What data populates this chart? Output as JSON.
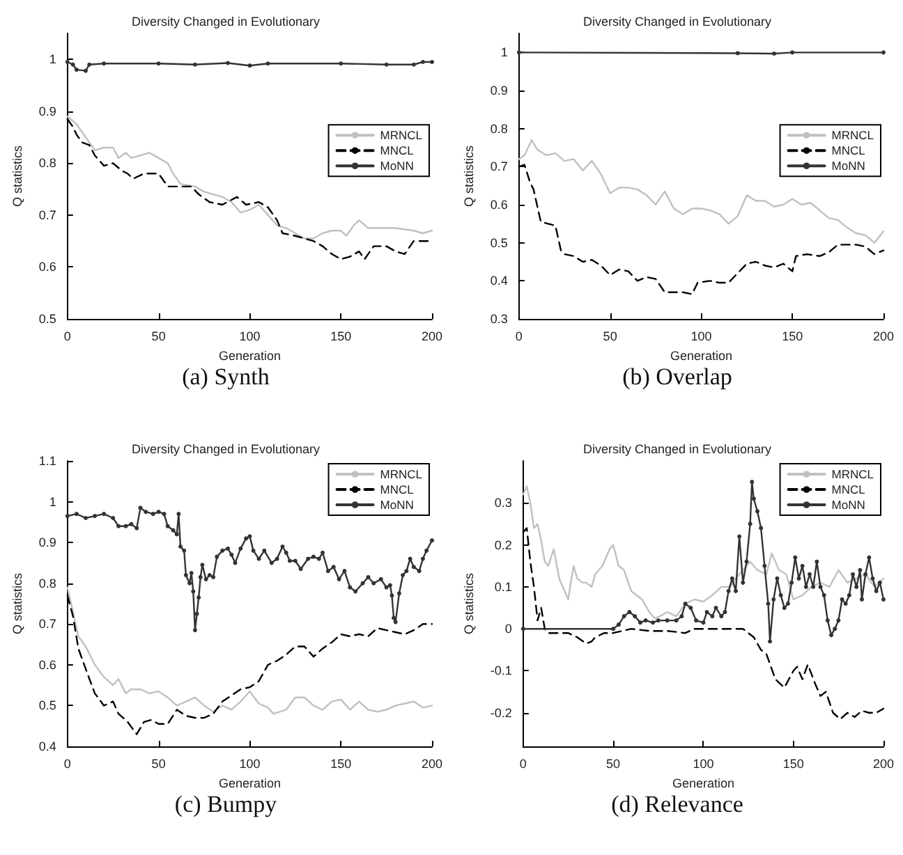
{
  "chart_data": [
    {
      "type": "line",
      "title": "Diversity Changed in Evolutionary",
      "xlabel": "Generation",
      "ylabel": "Q statistics",
      "annotations": [
        "(a) Synth"
      ],
      "xlim": [
        0,
        200
      ],
      "xticks": [
        0,
        50,
        100,
        150,
        200
      ],
      "ylim": [
        0.5,
        1.05
      ],
      "yticks": [
        0.5,
        0.6,
        0.7,
        0.8,
        0.9,
        1
      ],
      "grid": false,
      "legend": "right",
      "series": [
        {
          "name": "MRNCL",
          "color": "#c0c0c0",
          "line_style": "solid",
          "marker": "none",
          "x": [
            0,
            5,
            10,
            15,
            20,
            25,
            28,
            32,
            35,
            40,
            45,
            50,
            55,
            58,
            62,
            70,
            75,
            80,
            85,
            90,
            95,
            100,
            105,
            110,
            115,
            120,
            125,
            130,
            135,
            140,
            145,
            150,
            153,
            157,
            160,
            165,
            170,
            180,
            190,
            195,
            200
          ],
          "values": [
            0.89,
            0.875,
            0.85,
            0.825,
            0.83,
            0.83,
            0.81,
            0.82,
            0.81,
            0.815,
            0.82,
            0.81,
            0.8,
            0.78,
            0.76,
            0.755,
            0.745,
            0.74,
            0.735,
            0.725,
            0.705,
            0.71,
            0.72,
            0.7,
            0.68,
            0.675,
            0.665,
            0.655,
            0.655,
            0.665,
            0.67,
            0.67,
            0.66,
            0.68,
            0.69,
            0.675,
            0.675,
            0.675,
            0.67,
            0.665,
            0.67
          ]
        },
        {
          "name": "MNCL",
          "color": "#000000",
          "line_style": "dashed",
          "marker": "none",
          "x": [
            0,
            3,
            5,
            8,
            12,
            15,
            20,
            25,
            30,
            33,
            36,
            42,
            50,
            55,
            60,
            68,
            72,
            78,
            85,
            93,
            98,
            105,
            110,
            115,
            118,
            125,
            130,
            135,
            140,
            145,
            150,
            155,
            160,
            163,
            168,
            175,
            180,
            185,
            190,
            200
          ],
          "values": [
            0.885,
            0.87,
            0.855,
            0.84,
            0.835,
            0.815,
            0.795,
            0.8,
            0.785,
            0.78,
            0.77,
            0.78,
            0.78,
            0.755,
            0.755,
            0.755,
            0.74,
            0.725,
            0.72,
            0.735,
            0.72,
            0.725,
            0.715,
            0.69,
            0.665,
            0.66,
            0.655,
            0.65,
            0.64,
            0.625,
            0.615,
            0.62,
            0.63,
            0.615,
            0.64,
            0.64,
            0.63,
            0.625,
            0.65,
            0.65
          ]
        },
        {
          "name": "MoNN",
          "color": "#333333",
          "line_style": "solid",
          "marker": "circle",
          "x": [
            0,
            3,
            5,
            10,
            12,
            20,
            50,
            70,
            88,
            100,
            110,
            150,
            175,
            190,
            195,
            200
          ],
          "values": [
            0.995,
            0.99,
            0.98,
            0.978,
            0.99,
            0.992,
            0.992,
            0.99,
            0.993,
            0.988,
            0.992,
            0.992,
            0.99,
            0.99,
            0.995,
            0.995
          ]
        }
      ]
    },
    {
      "type": "line",
      "title": "Diversity Changed in Evolutionary",
      "xlabel": "Generation",
      "ylabel": "Q statistics",
      "annotations": [
        "(b) Overlap"
      ],
      "xlim": [
        0,
        200
      ],
      "xticks": [
        0,
        50,
        100,
        150,
        200
      ],
      "ylim": [
        0.3,
        1.05
      ],
      "yticks": [
        0.3,
        0.4,
        0.5,
        0.6,
        0.7,
        0.8,
        0.9,
        1
      ],
      "grid": false,
      "legend": "right",
      "series": [
        {
          "name": "MRNCL",
          "color": "#c0c0c0",
          "line_style": "solid",
          "marker": "none",
          "x": [
            0,
            3,
            7,
            10,
            15,
            20,
            25,
            30,
            35,
            40,
            45,
            50,
            55,
            60,
            65,
            70,
            75,
            80,
            85,
            90,
            95,
            100,
            105,
            110,
            115,
            120,
            125,
            130,
            135,
            140,
            145,
            150,
            155,
            160,
            165,
            170,
            175,
            180,
            185,
            190,
            195,
            200
          ],
          "values": [
            0.72,
            0.73,
            0.77,
            0.745,
            0.73,
            0.735,
            0.715,
            0.72,
            0.69,
            0.715,
            0.68,
            0.63,
            0.645,
            0.645,
            0.64,
            0.625,
            0.6,
            0.635,
            0.59,
            0.575,
            0.59,
            0.59,
            0.585,
            0.575,
            0.55,
            0.57,
            0.625,
            0.61,
            0.61,
            0.595,
            0.6,
            0.615,
            0.6,
            0.605,
            0.585,
            0.565,
            0.56,
            0.54,
            0.525,
            0.52,
            0.5,
            0.53
          ]
        },
        {
          "name": "MNCL",
          "color": "#000000",
          "line_style": "dashed",
          "marker": "none",
          "x": [
            0,
            3,
            6,
            8,
            12,
            16,
            20,
            23,
            25,
            30,
            35,
            40,
            45,
            50,
            55,
            60,
            65,
            70,
            75,
            80,
            85,
            90,
            95,
            98,
            105,
            110,
            115,
            120,
            125,
            130,
            135,
            140,
            145,
            150,
            152,
            158,
            165,
            170,
            175,
            180,
            185,
            190,
            195,
            200
          ],
          "values": [
            0.7,
            0.705,
            0.66,
            0.64,
            0.555,
            0.55,
            0.545,
            0.48,
            0.47,
            0.465,
            0.45,
            0.455,
            0.44,
            0.415,
            0.43,
            0.425,
            0.4,
            0.41,
            0.405,
            0.37,
            0.37,
            0.37,
            0.365,
            0.395,
            0.4,
            0.395,
            0.395,
            0.42,
            0.445,
            0.45,
            0.44,
            0.435,
            0.445,
            0.425,
            0.465,
            0.47,
            0.465,
            0.475,
            0.495,
            0.495,
            0.495,
            0.49,
            0.47,
            0.48
          ]
        },
        {
          "name": "MoNN",
          "color": "#333333",
          "line_style": "solid",
          "marker": "circle",
          "x": [
            0,
            120,
            140,
            150,
            200
          ],
          "values": [
            1.0,
            0.998,
            0.997,
            1.0,
            1.0
          ]
        }
      ]
    },
    {
      "type": "line",
      "title": "Diversity Changed in Evolutionary",
      "xlabel": "Generation",
      "ylabel": "Q statistics",
      "annotations": [
        "(c) Bumpy"
      ],
      "xlim": [
        0,
        200
      ],
      "xticks": [
        0,
        50,
        100,
        150,
        200
      ],
      "ylim": [
        0.4,
        1.1
      ],
      "yticks": [
        0.4,
        0.5,
        0.6,
        0.7,
        0.8,
        0.9,
        1,
        1.1
      ],
      "grid": false,
      "legend": "top right",
      "series": [
        {
          "name": "MRNCL",
          "color": "#c0c0c0",
          "line_style": "solid",
          "marker": "none",
          "x": [
            0,
            3,
            6,
            10,
            15,
            20,
            25,
            28,
            32,
            35,
            40,
            45,
            50,
            55,
            60,
            65,
            70,
            75,
            80,
            85,
            90,
            95,
            100,
            105,
            110,
            113,
            120,
            125,
            130,
            135,
            140,
            145,
            150,
            155,
            160,
            165,
            170,
            175,
            180,
            185,
            190,
            195,
            200
          ],
          "values": [
            0.79,
            0.73,
            0.67,
            0.645,
            0.6,
            0.57,
            0.55,
            0.565,
            0.53,
            0.54,
            0.54,
            0.53,
            0.535,
            0.52,
            0.5,
            0.51,
            0.52,
            0.5,
            0.485,
            0.5,
            0.49,
            0.51,
            0.535,
            0.505,
            0.495,
            0.48,
            0.49,
            0.52,
            0.52,
            0.5,
            0.49,
            0.51,
            0.515,
            0.49,
            0.51,
            0.49,
            0.485,
            0.49,
            0.5,
            0.505,
            0.51,
            0.495,
            0.5
          ]
        },
        {
          "name": "MNCL",
          "color": "#000000",
          "line_style": "dashed",
          "marker": "none",
          "x": [
            0,
            3,
            6,
            10,
            15,
            20,
            25,
            28,
            33,
            38,
            42,
            46,
            50,
            55,
            60,
            65,
            70,
            75,
            80,
            85,
            90,
            95,
            100,
            105,
            110,
            115,
            120,
            125,
            130,
            135,
            140,
            145,
            150,
            155,
            160,
            165,
            170,
            175,
            180,
            185,
            190,
            195,
            200
          ],
          "values": [
            0.77,
            0.72,
            0.64,
            0.59,
            0.53,
            0.5,
            0.51,
            0.48,
            0.46,
            0.43,
            0.46,
            0.465,
            0.455,
            0.455,
            0.49,
            0.475,
            0.47,
            0.47,
            0.48,
            0.51,
            0.525,
            0.54,
            0.545,
            0.56,
            0.6,
            0.61,
            0.625,
            0.645,
            0.645,
            0.62,
            0.64,
            0.655,
            0.675,
            0.67,
            0.675,
            0.67,
            0.69,
            0.685,
            0.68,
            0.675,
            0.685,
            0.7,
            0.7
          ]
        },
        {
          "name": "MoNN",
          "color": "#333333",
          "line_style": "solid",
          "marker": "circle",
          "x": [
            0,
            5,
            10,
            15,
            20,
            25,
            28,
            32,
            35,
            38,
            40,
            43,
            47,
            50,
            53,
            55,
            58,
            60,
            61,
            62,
            64,
            65,
            67,
            68,
            69,
            70,
            71,
            72,
            73,
            74,
            76,
            78,
            80,
            82,
            85,
            88,
            90,
            92,
            95,
            98,
            100,
            102,
            105,
            108,
            112,
            115,
            118,
            120,
            122,
            125,
            128,
            132,
            135,
            138,
            140,
            143,
            146,
            149,
            152,
            155,
            158,
            162,
            165,
            168,
            172,
            175,
            177,
            178,
            179,
            180,
            182,
            184,
            186,
            188,
            190,
            193,
            195,
            197,
            200
          ],
          "values": [
            0.965,
            0.97,
            0.96,
            0.965,
            0.97,
            0.96,
            0.94,
            0.94,
            0.945,
            0.935,
            0.985,
            0.975,
            0.97,
            0.975,
            0.97,
            0.94,
            0.93,
            0.92,
            0.97,
            0.89,
            0.88,
            0.82,
            0.8,
            0.825,
            0.78,
            0.685,
            0.725,
            0.765,
            0.815,
            0.845,
            0.81,
            0.82,
            0.815,
            0.865,
            0.88,
            0.885,
            0.87,
            0.85,
            0.885,
            0.91,
            0.915,
            0.88,
            0.86,
            0.88,
            0.85,
            0.86,
            0.89,
            0.875,
            0.855,
            0.855,
            0.835,
            0.86,
            0.865,
            0.86,
            0.875,
            0.83,
            0.84,
            0.81,
            0.83,
            0.79,
            0.78,
            0.8,
            0.815,
            0.8,
            0.81,
            0.79,
            0.795,
            0.77,
            0.715,
            0.705,
            0.775,
            0.82,
            0.83,
            0.86,
            0.84,
            0.83,
            0.86,
            0.88,
            0.905
          ]
        }
      ]
    },
    {
      "type": "line",
      "title": "Diversity Changed in Evolutionary",
      "xlabel": "Generation",
      "ylabel": "Q statistics",
      "annotations": [
        "(d) Relevance"
      ],
      "xlim": [
        0,
        200
      ],
      "xticks": [
        0,
        50,
        100,
        150,
        200
      ],
      "ylim": [
        -0.28,
        0.4
      ],
      "yticks": [
        -0.2,
        -0.1,
        0,
        0.1,
        0.2,
        0.3
      ],
      "grid": false,
      "legend": "top right",
      "series": [
        {
          "name": "MRNCL",
          "color": "#c0c0c0",
          "line_style": "solid",
          "marker": "none",
          "x": [
            0,
            2,
            4,
            6,
            8,
            10,
            12,
            14,
            17,
            20,
            23,
            25,
            28,
            30,
            33,
            35,
            38,
            40,
            44,
            48,
            50,
            53,
            56,
            60,
            63,
            66,
            70,
            73,
            76,
            80,
            85,
            90,
            95,
            100,
            105,
            110,
            115,
            118,
            122,
            126,
            130,
            135,
            138,
            142,
            146,
            150,
            155,
            160,
            165,
            170,
            175,
            180,
            185,
            190,
            195,
            200
          ],
          "values": [
            0.32,
            0.34,
            0.3,
            0.24,
            0.25,
            0.21,
            0.16,
            0.15,
            0.19,
            0.12,
            0.09,
            0.07,
            0.15,
            0.12,
            0.11,
            0.11,
            0.1,
            0.13,
            0.15,
            0.19,
            0.2,
            0.15,
            0.14,
            0.09,
            0.08,
            0.07,
            0.04,
            0.025,
            0.03,
            0.04,
            0.03,
            0.06,
            0.07,
            0.065,
            0.08,
            0.1,
            0.1,
            0.12,
            0.14,
            0.16,
            0.14,
            0.13,
            0.18,
            0.14,
            0.13,
            0.07,
            0.08,
            0.1,
            0.11,
            0.1,
            0.14,
            0.11,
            0.12,
            0.13,
            0.1,
            0.12
          ]
        },
        {
          "name": "MNCL",
          "color": "#000000",
          "line_style": "dashed",
          "marker": "none",
          "x": [
            0,
            2,
            4,
            6,
            8,
            10,
            12,
            14,
            20,
            25,
            30,
            35,
            38,
            40,
            45,
            50,
            60,
            70,
            80,
            90,
            95,
            110,
            122,
            128,
            132,
            135,
            140,
            145,
            150,
            152,
            155,
            158,
            162,
            165,
            168,
            172,
            176,
            180,
            184,
            188,
            192,
            196,
            200
          ],
          "values": [
            0.23,
            0.24,
            0.16,
            0.1,
            0.02,
            0.05,
            0,
            -0.01,
            -0.01,
            -0.01,
            -0.02,
            -0.035,
            -0.03,
            -0.02,
            -0.01,
            -0.01,
            0,
            -0.005,
            -0.005,
            -0.01,
            0,
            0,
            0,
            -0.02,
            -0.05,
            -0.06,
            -0.12,
            -0.14,
            -0.1,
            -0.09,
            -0.12,
            -0.085,
            -0.13,
            -0.16,
            -0.15,
            -0.2,
            -0.215,
            -0.2,
            -0.21,
            -0.195,
            -0.2,
            -0.2,
            -0.19
          ]
        },
        {
          "name": "MoNN",
          "color": "#333333",
          "line_style": "solid",
          "marker": "circle",
          "x": [
            0,
            50,
            53,
            56,
            59,
            62,
            65,
            68,
            72,
            75,
            80,
            85,
            88,
            90,
            93,
            96,
            100,
            102,
            105,
            107,
            110,
            112,
            114,
            116,
            118,
            120,
            122,
            124,
            126,
            127,
            128,
            130,
            132,
            134,
            136,
            137,
            139,
            141,
            143,
            145,
            147,
            149,
            151,
            153,
            155,
            157,
            159,
            161,
            163,
            165,
            167,
            169,
            171,
            173,
            175,
            177,
            179,
            181,
            183,
            185,
            187,
            188,
            190,
            192,
            194,
            196,
            198,
            200
          ],
          "values": [
            0,
            0,
            0.01,
            0.03,
            0.04,
            0.03,
            0.015,
            0.02,
            0.015,
            0.02,
            0.02,
            0.02,
            0.03,
            0.06,
            0.05,
            0.02,
            0.015,
            0.04,
            0.03,
            0.05,
            0.03,
            0.04,
            0.09,
            0.12,
            0.09,
            0.22,
            0.11,
            0.16,
            0.25,
            0.35,
            0.31,
            0.28,
            0.24,
            0.15,
            0.06,
            -0.03,
            0.07,
            0.12,
            0.08,
            0.05,
            0.06,
            0.11,
            0.17,
            0.12,
            0.15,
            0.1,
            0.13,
            0.1,
            0.16,
            0.1,
            0.08,
            0.02,
            -0.015,
            0,
            0.02,
            0.07,
            0.06,
            0.08,
            0.13,
            0.1,
            0.14,
            0.07,
            0.13,
            0.17,
            0.12,
            0.09,
            0.11,
            0.07
          ]
        }
      ]
    }
  ]
}
